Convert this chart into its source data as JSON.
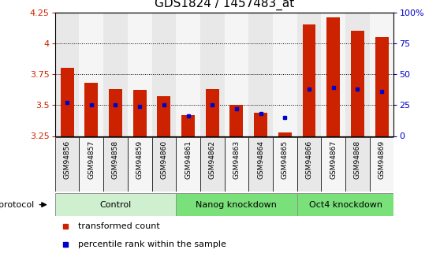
{
  "title": "GDS1824 / 1457483_at",
  "samples": [
    "GSM94856",
    "GSM94857",
    "GSM94858",
    "GSM94859",
    "GSM94860",
    "GSM94861",
    "GSM94862",
    "GSM94863",
    "GSM94864",
    "GSM94865",
    "GSM94866",
    "GSM94867",
    "GSM94868",
    "GSM94869"
  ],
  "transformed_count": [
    3.8,
    3.68,
    3.63,
    3.62,
    3.57,
    3.42,
    3.63,
    3.5,
    3.44,
    3.28,
    4.15,
    4.21,
    4.1,
    4.05
  ],
  "percentile_rank": [
    27,
    25,
    25,
    24,
    25,
    16,
    25,
    22,
    18,
    15,
    38,
    39,
    38,
    36
  ],
  "ylim": [
    3.25,
    4.25
  ],
  "ylim_right": [
    0,
    100
  ],
  "yticks_left": [
    3.25,
    3.5,
    3.75,
    4.0,
    4.25
  ],
  "ytick_labels_left": [
    "3.25",
    "3.5",
    "3.75",
    "4",
    "4.25"
  ],
  "yticks_right": [
    0,
    25,
    50,
    75,
    100
  ],
  "ytick_labels_right": [
    "0",
    "25",
    "50",
    "75",
    "100%"
  ],
  "groups": [
    {
      "label": "Control",
      "start": 0,
      "end": 5,
      "color": "#cff0cf"
    },
    {
      "label": "Nanog knockdown",
      "start": 5,
      "end": 10,
      "color": "#7ae07a"
    },
    {
      "label": "Oct4 knockdown",
      "start": 10,
      "end": 14,
      "color": "#7ae07a"
    }
  ],
  "bar_color": "#cc2200",
  "percentile_color": "#0000cc",
  "base_value": 3.25,
  "bar_width": 0.55,
  "plot_bg_color": "#ffffff",
  "col_bg_even": "#e8e8e8",
  "col_bg_odd": "#f5f5f5",
  "grid_color": "#000000",
  "title_fontsize": 11,
  "axis_label_color_left": "#cc2200",
  "axis_label_color_right": "#0000cc",
  "legend_items": [
    "transformed count",
    "percentile rank within the sample"
  ]
}
